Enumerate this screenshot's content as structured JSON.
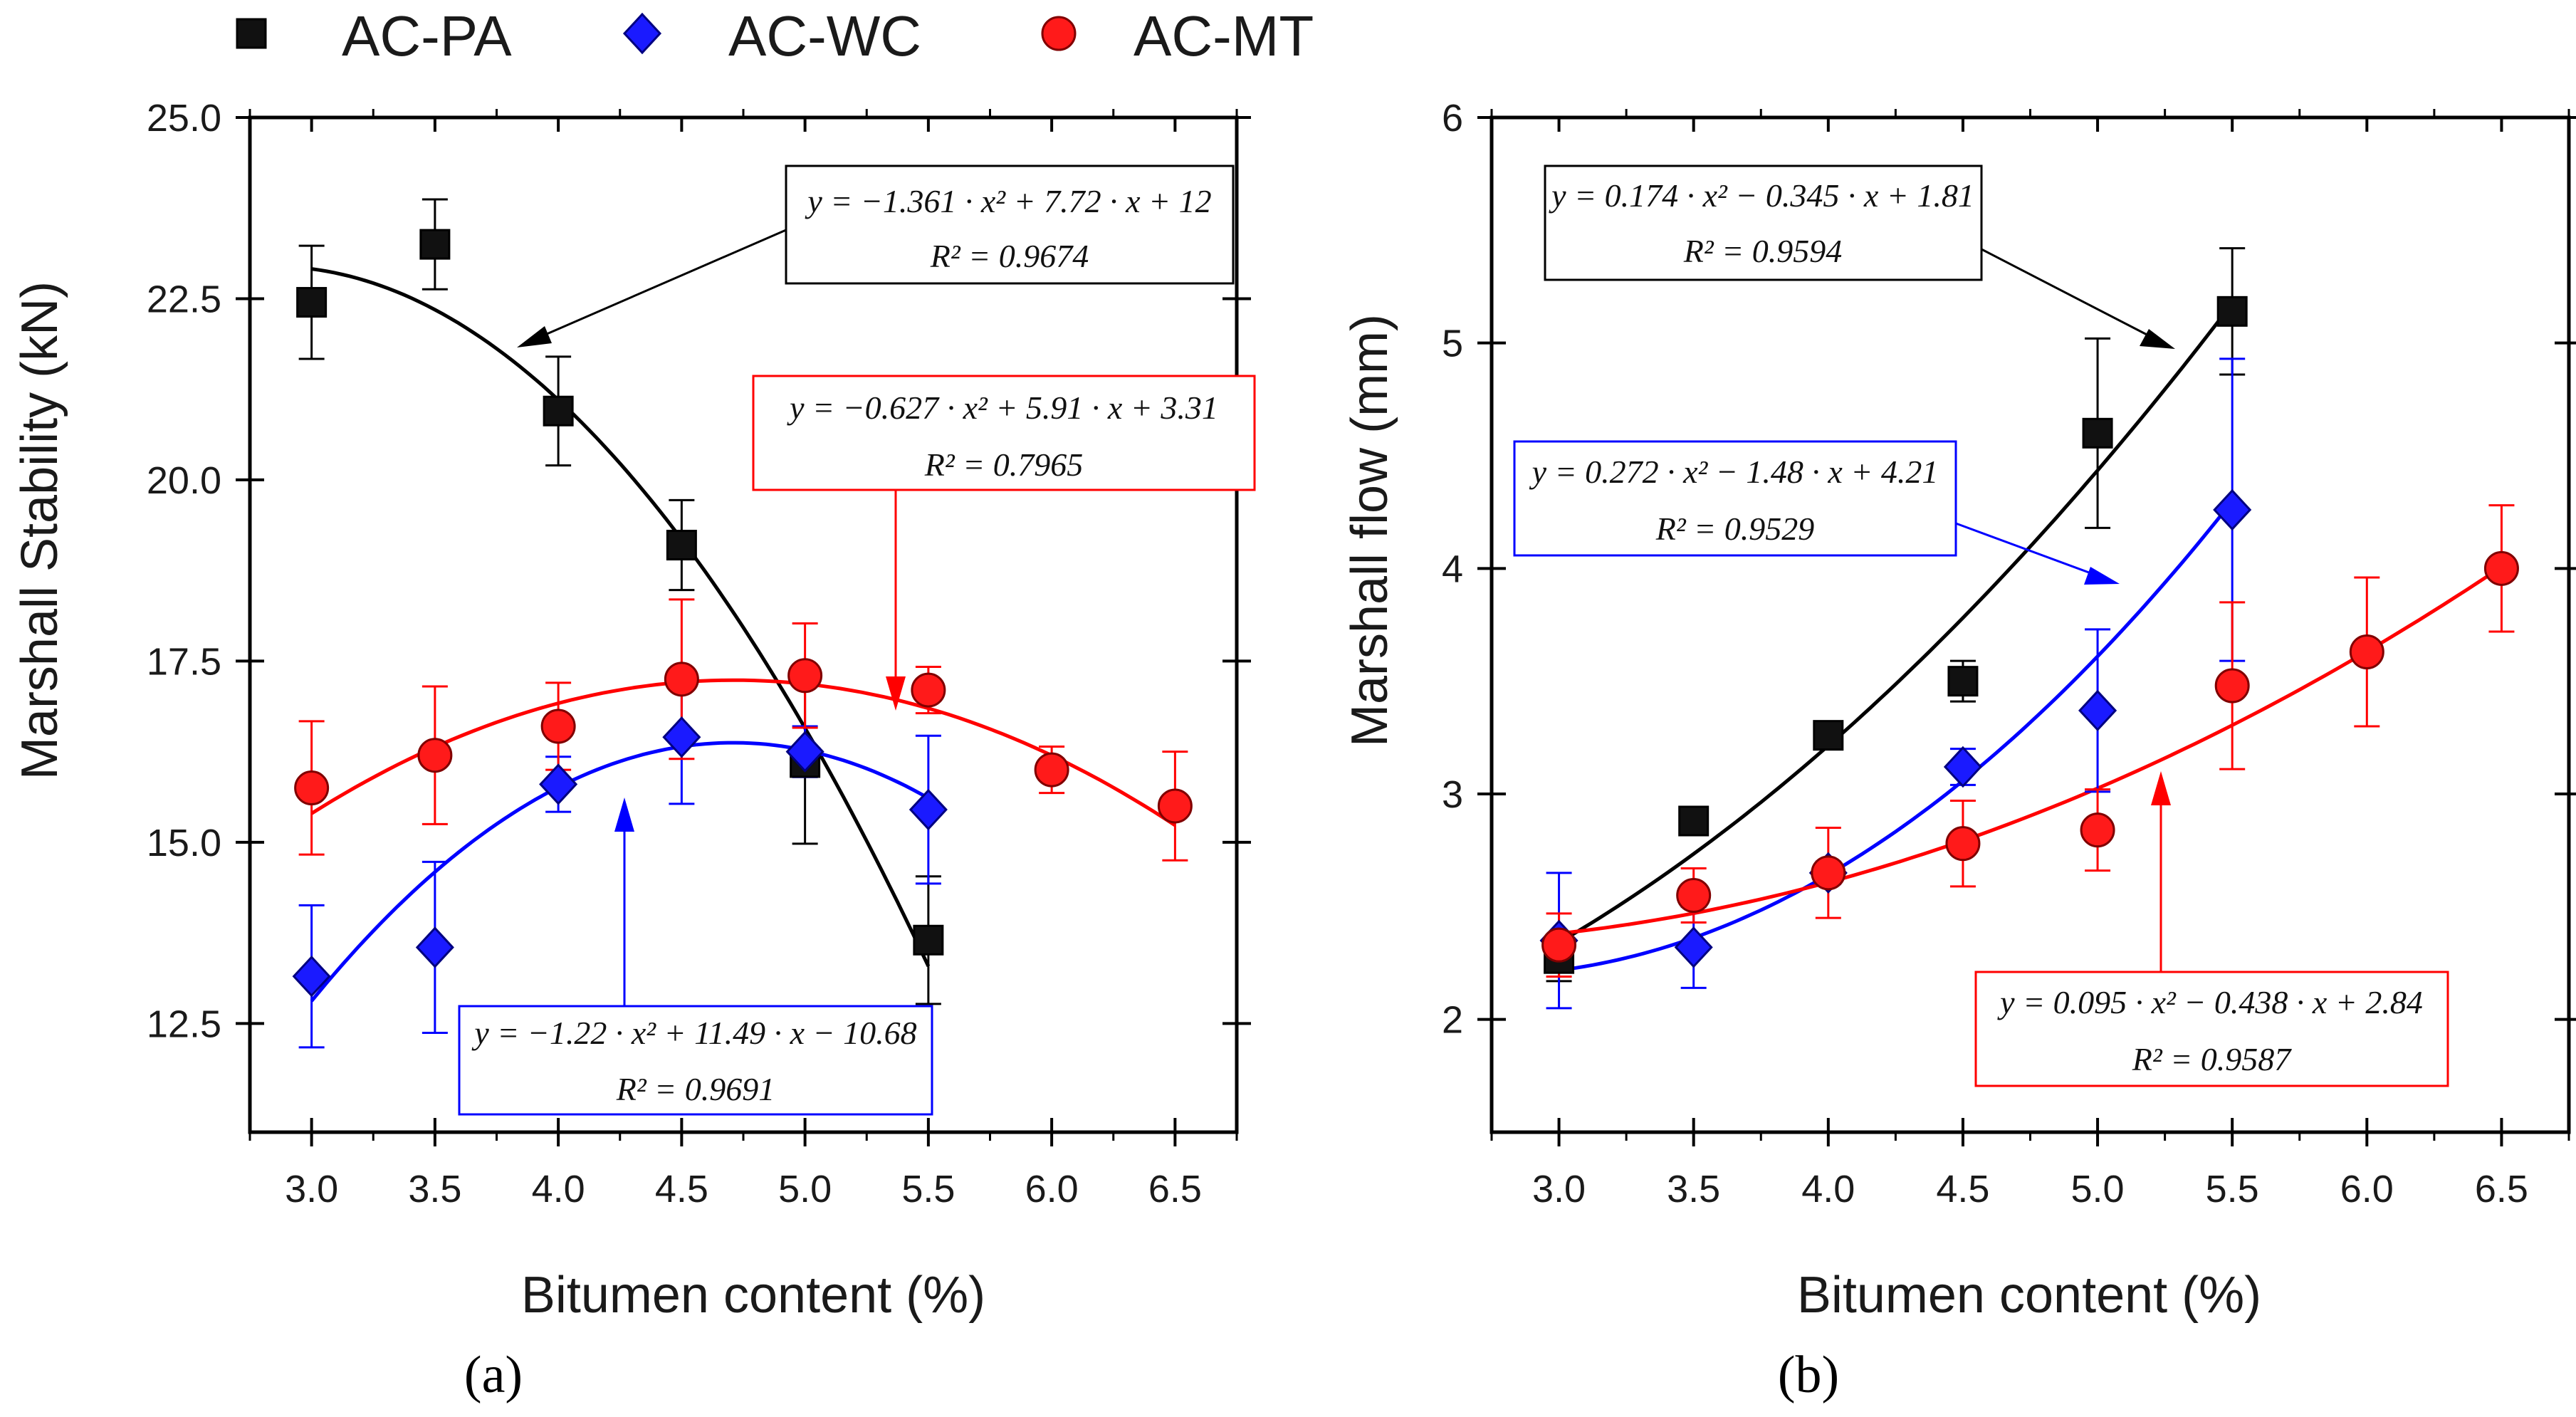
{
  "legend": [
    {
      "name": "AC-PA",
      "color": "#000000",
      "marker": "square"
    },
    {
      "name": "AC-WC",
      "color": "#0000ff",
      "marker": "diamond"
    },
    {
      "name": "AC-MT",
      "color": "#ff0000",
      "marker": "circle"
    }
  ],
  "chart_data": [
    {
      "type": "scatter",
      "panel_label": "(a)",
      "xlabel": "Bitumen content (%)",
      "ylabel": "Marshall Stability (kN)",
      "xlim": [
        2.75,
        6.75
      ],
      "ylim": [
        11.0,
        25.0
      ],
      "xticks": [
        3.0,
        3.5,
        4.0,
        4.5,
        5.0,
        5.5,
        6.0,
        6.5
      ],
      "xtick_labels": [
        "3.0",
        "3.5",
        "4.0",
        "4.5",
        "5.0",
        "5.5",
        "6.0",
        "6.5"
      ],
      "yticks": [
        12.5,
        15.0,
        17.5,
        20.0,
        22.5,
        25.0
      ],
      "ytick_labels": [
        "12.5",
        "15.0",
        "17.5",
        "20.0",
        "22.5",
        "25.0"
      ],
      "series": [
        {
          "name": "AC-PA",
          "color": "#000000",
          "marker": "square",
          "x": [
            3.0,
            3.5,
            4.0,
            4.5,
            5.0,
            5.5
          ],
          "y": [
            22.45,
            23.25,
            20.95,
            19.1,
            16.1,
            13.65
          ],
          "err": [
            0.78,
            0.62,
            0.75,
            0.62,
            1.12,
            0.88
          ],
          "fit": {
            "coef": [
              -1.361,
              7.72,
              12
            ],
            "range": [
              3.0,
              5.5
            ],
            "equation": "y = −1.361 · x² + 7.72 · x + 12",
            "r2": "R² = 0.9674"
          }
        },
        {
          "name": "AC-WC",
          "color": "#0000ff",
          "marker": "diamond",
          "x": [
            3.0,
            3.5,
            4.0,
            4.5,
            5.0,
            5.5
          ],
          "y": [
            13.15,
            13.55,
            15.8,
            16.45,
            16.25,
            15.45
          ],
          "err": [
            0.98,
            1.18,
            0.38,
            0.92,
            0.35,
            1.02
          ],
          "fit": {
            "coef": [
              -1.22,
              11.49,
              -10.68
            ],
            "range": [
              3.0,
              5.5
            ],
            "equation": "y = −1.22 · x² + 11.49 · x − 10.68",
            "r2": "R² = 0.9691"
          }
        },
        {
          "name": "AC-MT",
          "color": "#ff0000",
          "marker": "circle",
          "x": [
            3.0,
            3.5,
            4.0,
            4.5,
            5.0,
            5.5,
            6.0,
            6.5
          ],
          "y": [
            15.75,
            16.2,
            16.6,
            17.25,
            17.3,
            17.1,
            16.0,
            15.5
          ],
          "err": [
            0.92,
            0.95,
            0.6,
            1.1,
            0.72,
            0.32,
            0.32,
            0.75
          ],
          "fit": {
            "coef": [
              -0.627,
              5.91,
              3.31
            ],
            "range": [
              3.0,
              6.5
            ],
            "equation": "y = −0.627 · x² + 5.91 · x + 3.31",
            "r2": "R² = 0.7965"
          }
        }
      ]
    },
    {
      "type": "scatter",
      "panel_label": "(b)",
      "xlabel": "Bitumen content (%)",
      "ylabel": "Marshall flow (mm)",
      "xlim": [
        2.75,
        6.75
      ],
      "ylim": [
        1.5,
        6.0
      ],
      "xticks": [
        3.0,
        3.5,
        4.0,
        4.5,
        5.0,
        5.5,
        6.0,
        6.5
      ],
      "xtick_labels": [
        "3.0",
        "3.5",
        "4.0",
        "4.5",
        "5.0",
        "5.5",
        "6.0",
        "6.5"
      ],
      "yticks": [
        2,
        3,
        4,
        5,
        6
      ],
      "ytick_labels": [
        "2",
        "3",
        "4",
        "5",
        "6"
      ],
      "series": [
        {
          "name": "AC-PA",
          "color": "#000000",
          "marker": "square",
          "x": [
            3.0,
            3.5,
            4.0,
            4.5,
            5.0,
            5.5
          ],
          "y": [
            2.27,
            2.88,
            3.26,
            3.5,
            4.6,
            5.14
          ],
          "err": [
            0.1,
            0.06,
            0.06,
            0.09,
            0.42,
            0.28
          ],
          "fit": {
            "coef": [
              0.174,
              -0.345,
              1.81
            ],
            "range": [
              3.0,
              5.5
            ],
            "equation": "y = 0.174 · x² − 0.345 · x + 1.81",
            "r2": "R² = 0.9594"
          }
        },
        {
          "name": "AC-WC",
          "color": "#0000ff",
          "marker": "diamond",
          "x": [
            3.0,
            3.5,
            4.0,
            4.5,
            5.0,
            5.5
          ],
          "y": [
            2.35,
            2.32,
            2.65,
            3.12,
            3.37,
            4.26
          ],
          "err": [
            0.3,
            0.18,
            0.05,
            0.08,
            0.36,
            0.67
          ],
          "fit": {
            "coef": [
              0.272,
              -1.48,
              4.21
            ],
            "range": [
              3.0,
              5.5
            ],
            "equation": "y = 0.272 · x² − 1.48 · x + 4.21",
            "r2": "R² = 0.9529"
          }
        },
        {
          "name": "AC-MT",
          "color": "#ff0000",
          "marker": "circle",
          "x": [
            3.0,
            3.5,
            4.0,
            4.5,
            5.0,
            5.5,
            6.0,
            6.5
          ],
          "y": [
            2.33,
            2.55,
            2.65,
            2.78,
            2.84,
            3.48,
            3.63,
            4.0
          ],
          "err": [
            0.14,
            0.12,
            0.2,
            0.19,
            0.18,
            0.37,
            0.33,
            0.28
          ],
          "fit": {
            "coef": [
              0.095,
              -0.438,
              2.84
            ],
            "range": [
              3.0,
              6.5
            ],
            "equation": "y = 0.095 · x² − 0.438 · x + 2.84",
            "r2": "R² = 0.9587"
          }
        }
      ]
    }
  ]
}
